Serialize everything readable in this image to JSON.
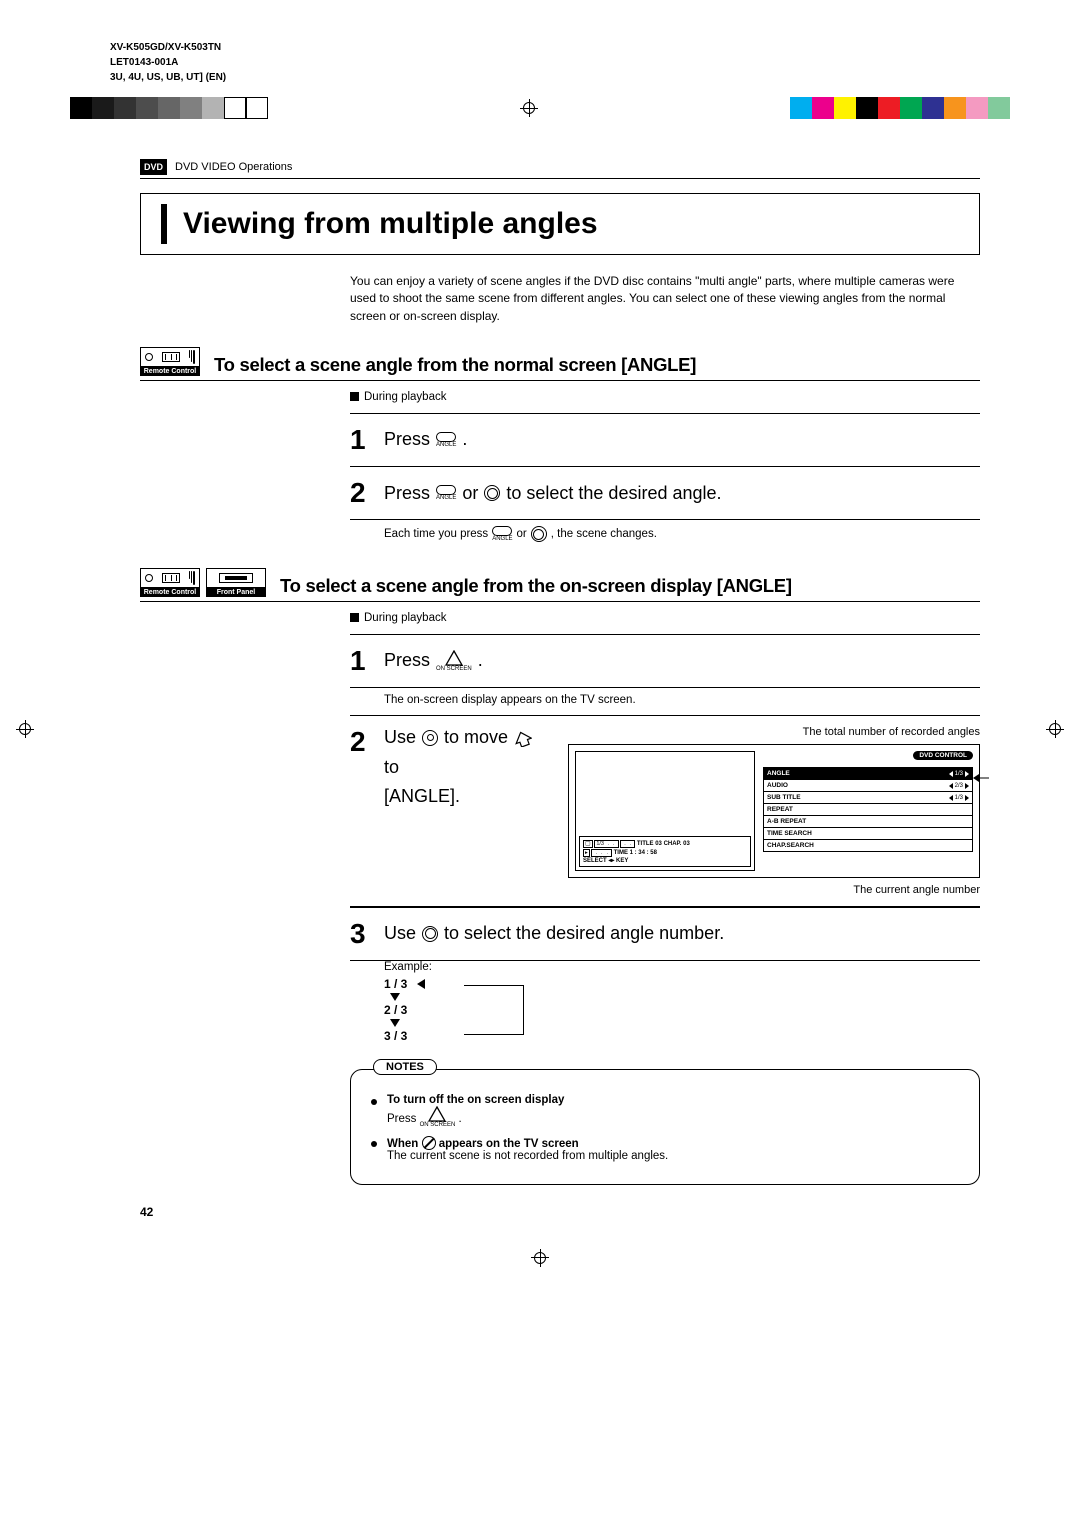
{
  "header": {
    "model": "XV-K505GD/XV-K503TN",
    "code": "LET0143-001A",
    "regions": "3U, 4U, US, UB, UT]   (EN)"
  },
  "registration_left": [
    "#000000",
    "#1a1a1a",
    "#333333",
    "#4d4d4d",
    "#666666",
    "#808080",
    "#b3b3b3",
    "#ffffff",
    "#ffffff"
  ],
  "registration_right": [
    "#00aeef",
    "#ec008c",
    "#fff200",
    "#000000",
    "#ed1c24",
    "#00a651",
    "#2e3192",
    "#f7941d",
    "#f49ac1",
    "#82ca9c"
  ],
  "section": {
    "badge": "DVD",
    "label": "DVD VIDEO Operations"
  },
  "title": "Viewing from multiple angles",
  "intro": "You can enjoy a variety of scene angles if the DVD disc contains \"multi angle\" parts, where multiple cameras were used to shoot the same scene from different angles.  You can select one of these viewing angles from the normal screen or on-screen display.",
  "controlLabels": {
    "remote": "Remote Control",
    "front": "Front Panel"
  },
  "sectionA": {
    "heading": "To select a scene angle from the normal screen [ANGLE]",
    "during": "During playback",
    "step1": "Press",
    "pillLabel1": "ANGLE",
    "step2_a": "Press",
    "step2_b": "or",
    "step2_c": "to select the desired angle.",
    "desc_a": "Each time you press",
    "desc_b": "or",
    "desc_c": ", the scene changes."
  },
  "sectionB": {
    "heading": "To select a scene angle from the on-screen display [ANGLE]",
    "during": "During playback",
    "step1": "Press",
    "triLabel": "ON SCREEN",
    "desc1": "The on-screen display appears on the TV screen.",
    "step2_a": "Use",
    "step2_b": "to move",
    "step2_c": "to",
    "step2_d": "[ANGLE].",
    "topcap": "The total number of recorded angles",
    "caption": "The current angle number",
    "step3_a": "Use",
    "step3_b": "to select the desired angle number.",
    "exampleLabel": "Example:",
    "exampleSeq": [
      "1 / 3",
      "2 / 3",
      "3 / 3"
    ]
  },
  "diagram": {
    "dvdControl": "DVD CONTROL",
    "menu": [
      {
        "label": "ANGLE",
        "val": "1/3",
        "hl": true
      },
      {
        "label": "AUDIO",
        "val": "2/3",
        "hl": false
      },
      {
        "label": "SUB TITLE",
        "val": "1/3",
        "hl": false
      },
      {
        "label": "REPEAT",
        "val": "",
        "hl": false
      },
      {
        "label": "A-B REPEAT",
        "val": "",
        "hl": false
      },
      {
        "label": "TIME SEARCH",
        "val": "",
        "hl": false
      },
      {
        "label": "CHAP.SEARCH",
        "val": "",
        "hl": false
      }
    ],
    "bottomLine1": "TITLE 03  CHAP. 03",
    "bottomLine2": "TIME  1 : 34 : 58",
    "bottomLine3": "SELECT  ◂▸  KEY"
  },
  "notes": {
    "label": "NOTES",
    "n1_bold": "To turn off the on screen display",
    "n1_text": "Press",
    "n2_bold_a": "When",
    "n2_bold_b": "appears on the TV screen",
    "n2_text": "The current scene is not recorded from multiple angles."
  },
  "pageNumber": "42"
}
